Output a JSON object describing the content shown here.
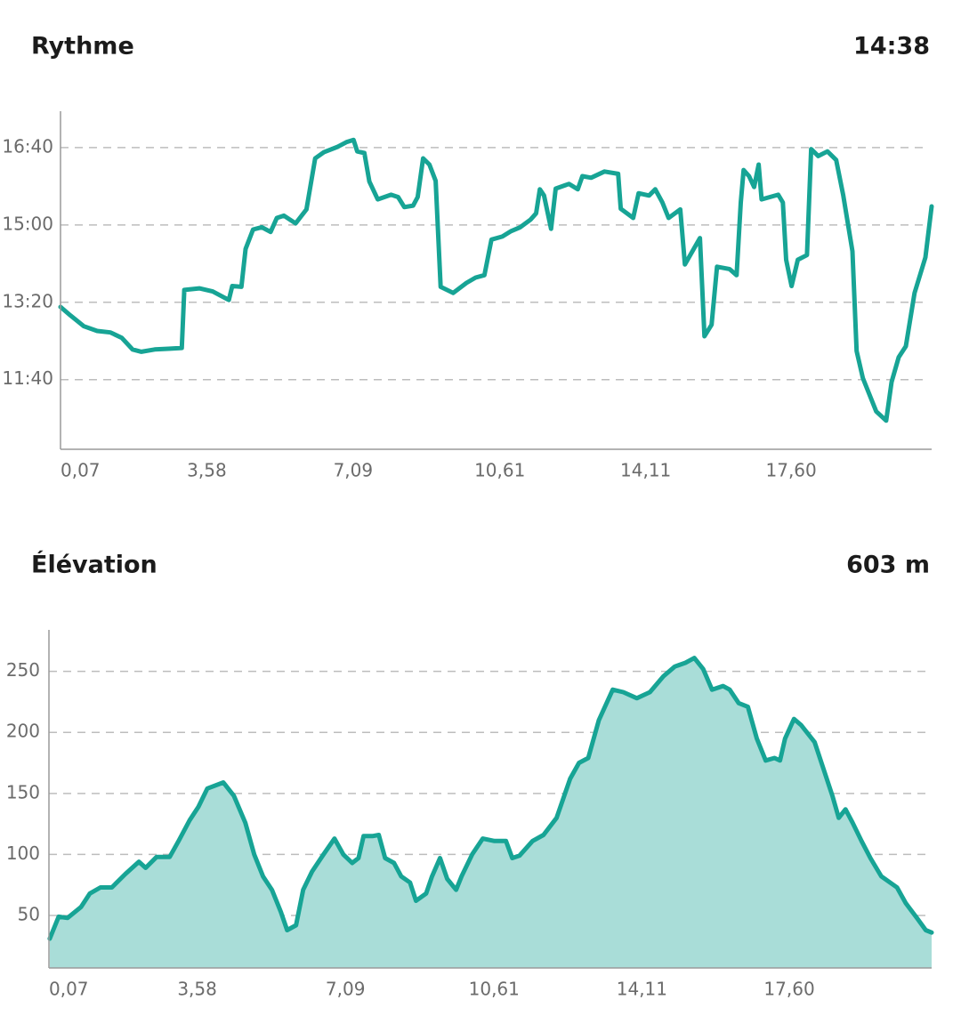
{
  "chart_data": [
    {
      "type": "line",
      "title": "Rythme",
      "summary": "14:38",
      "x": [
        0.07,
        0.31,
        0.63,
        0.95,
        1.27,
        1.54,
        1.8,
        2.01,
        2.33,
        2.66,
        2.98,
        3.04,
        3.4,
        3.72,
        4.11,
        4.19,
        4.41,
        4.51,
        4.69,
        4.9,
        5.11,
        5.26,
        5.43,
        5.71,
        5.97,
        6.18,
        6.39,
        6.72,
        6.93,
        7.1,
        7.19,
        7.36,
        7.48,
        7.68,
        8.0,
        8.17,
        8.32,
        8.53,
        8.64,
        8.77,
        8.92,
        9.07,
        9.19,
        9.49,
        9.81,
        10.03,
        10.24,
        10.41,
        10.67,
        10.88,
        11.1,
        11.35,
        11.48,
        11.57,
        11.67,
        11.84,
        11.95,
        12.27,
        12.48,
        12.59,
        12.8,
        13.12,
        13.45,
        13.51,
        13.81,
        13.94,
        14.19,
        14.34,
        14.51,
        14.66,
        14.94,
        15.05,
        15.41,
        15.52,
        15.69,
        15.82,
        16.12,
        16.29,
        16.39,
        16.46,
        16.59,
        16.71,
        16.82,
        16.89,
        17.29,
        17.4,
        17.48,
        17.61,
        17.76,
        17.98,
        18.08,
        18.25,
        18.47,
        18.68,
        18.85,
        19.07,
        19.17,
        19.32,
        19.64,
        19.88,
        20.01,
        20.18,
        20.35,
        20.56,
        20.82,
        20.97
      ],
      "values": [
        794,
        783,
        769,
        763,
        761,
        754,
        739,
        736,
        739,
        740,
        741,
        816,
        818,
        814,
        803,
        821,
        820,
        869,
        894,
        897,
        891,
        909,
        912,
        902,
        920,
        986,
        994,
        1001,
        1007,
        1010,
        995,
        993,
        956,
        933,
        939,
        936,
        923,
        925,
        936,
        986,
        978,
        957,
        820,
        812,
        825,
        832,
        835,
        881,
        885,
        892,
        897,
        907,
        915,
        946,
        938,
        895,
        947,
        953,
        946,
        963,
        961,
        969,
        966,
        921,
        909,
        941,
        938,
        946,
        929,
        909,
        920,
        849,
        883,
        756,
        771,
        846,
        843,
        835,
        929,
        971,
        963,
        949,
        978,
        933,
        939,
        929,
        855,
        821,
        855,
        861,
        998,
        989,
        995,
        984,
        938,
        866,
        737,
        702,
        659,
        647,
        697,
        729,
        743,
        812,
        858,
        924
      ],
      "color": "#17a495",
      "xlim": [
        0.07,
        20.97
      ],
      "xticks": [
        {
          "value": 0.07,
          "label": "0,07"
        },
        {
          "value": 3.58,
          "label": "3,58"
        },
        {
          "value": 7.09,
          "label": "7,09"
        },
        {
          "value": 10.61,
          "label": "10,61"
        },
        {
          "value": 14.11,
          "label": "14,11"
        },
        {
          "value": 17.6,
          "label": "17,60"
        }
      ],
      "ylim": [
        610,
        1047
      ],
      "yticks": [
        {
          "value": 1000,
          "label": "16:40"
        },
        {
          "value": 900,
          "label": "15:00"
        },
        {
          "value": 800,
          "label": "13:20"
        },
        {
          "value": 700,
          "label": "11:40"
        }
      ],
      "grid": true
    },
    {
      "type": "area",
      "title": "Élévation",
      "summary": "603 m",
      "x": [
        0.09,
        0.3,
        0.51,
        0.83,
        1.04,
        1.29,
        1.56,
        1.88,
        2.2,
        2.36,
        2.62,
        2.93,
        3.14,
        3.4,
        3.61,
        3.82,
        4.2,
        4.45,
        4.72,
        4.93,
        5.14,
        5.35,
        5.56,
        5.71,
        5.92,
        6.09,
        6.3,
        6.55,
        6.83,
        7.04,
        7.25,
        7.4,
        7.52,
        7.73,
        7.88,
        8.03,
        8.24,
        8.41,
        8.62,
        8.76,
        9.0,
        9.14,
        9.33,
        9.5,
        9.71,
        9.84,
        10.09,
        10.34,
        10.62,
        10.89,
        11.04,
        11.21,
        11.52,
        11.78,
        12.09,
        12.41,
        12.62,
        12.84,
        13.09,
        13.42,
        13.67,
        13.99,
        14.3,
        14.62,
        14.89,
        15.14,
        15.35,
        15.56,
        15.77,
        16.03,
        16.19,
        16.4,
        16.62,
        16.83,
        17.04,
        17.25,
        17.38,
        17.5,
        17.71,
        17.88,
        18.2,
        18.41,
        18.62,
        18.77,
        18.93,
        19.1,
        19.31,
        19.52,
        19.78,
        20.15,
        20.36,
        20.62,
        20.83,
        20.97
      ],
      "values": [
        31,
        49,
        48,
        57,
        68,
        73,
        73,
        84,
        94,
        89,
        98,
        98,
        111,
        128,
        139,
        154,
        159,
        148,
        126,
        100,
        82,
        71,
        53,
        38,
        42,
        71,
        86,
        99,
        113,
        100,
        93,
        97,
        115,
        115,
        116,
        97,
        93,
        82,
        77,
        62,
        68,
        82,
        97,
        80,
        71,
        82,
        100,
        113,
        111,
        111,
        97,
        99,
        111,
        116,
        130,
        162,
        175,
        179,
        210,
        235,
        233,
        228,
        233,
        246,
        254,
        257,
        261,
        252,
        235,
        238,
        235,
        224,
        221,
        195,
        177,
        179,
        177,
        195,
        211,
        206,
        192,
        170,
        148,
        130,
        137,
        126,
        111,
        97,
        82,
        73,
        60,
        48,
        38,
        36
      ],
      "color": "#17a495",
      "fill_color": "#a9ddd8",
      "xlim": [
        0.07,
        20.97
      ],
      "xticks": [
        {
          "value": 0.07,
          "label": "0,07"
        },
        {
          "value": 3.58,
          "label": "3,58"
        },
        {
          "value": 7.09,
          "label": "7,09"
        },
        {
          "value": 10.61,
          "label": "10,61"
        },
        {
          "value": 14.11,
          "label": "14,11"
        },
        {
          "value": 17.6,
          "label": "17,60"
        }
      ],
      "ylim": [
        7,
        284
      ],
      "yticks": [
        250,
        200,
        150,
        100,
        50
      ],
      "grid": true
    }
  ]
}
